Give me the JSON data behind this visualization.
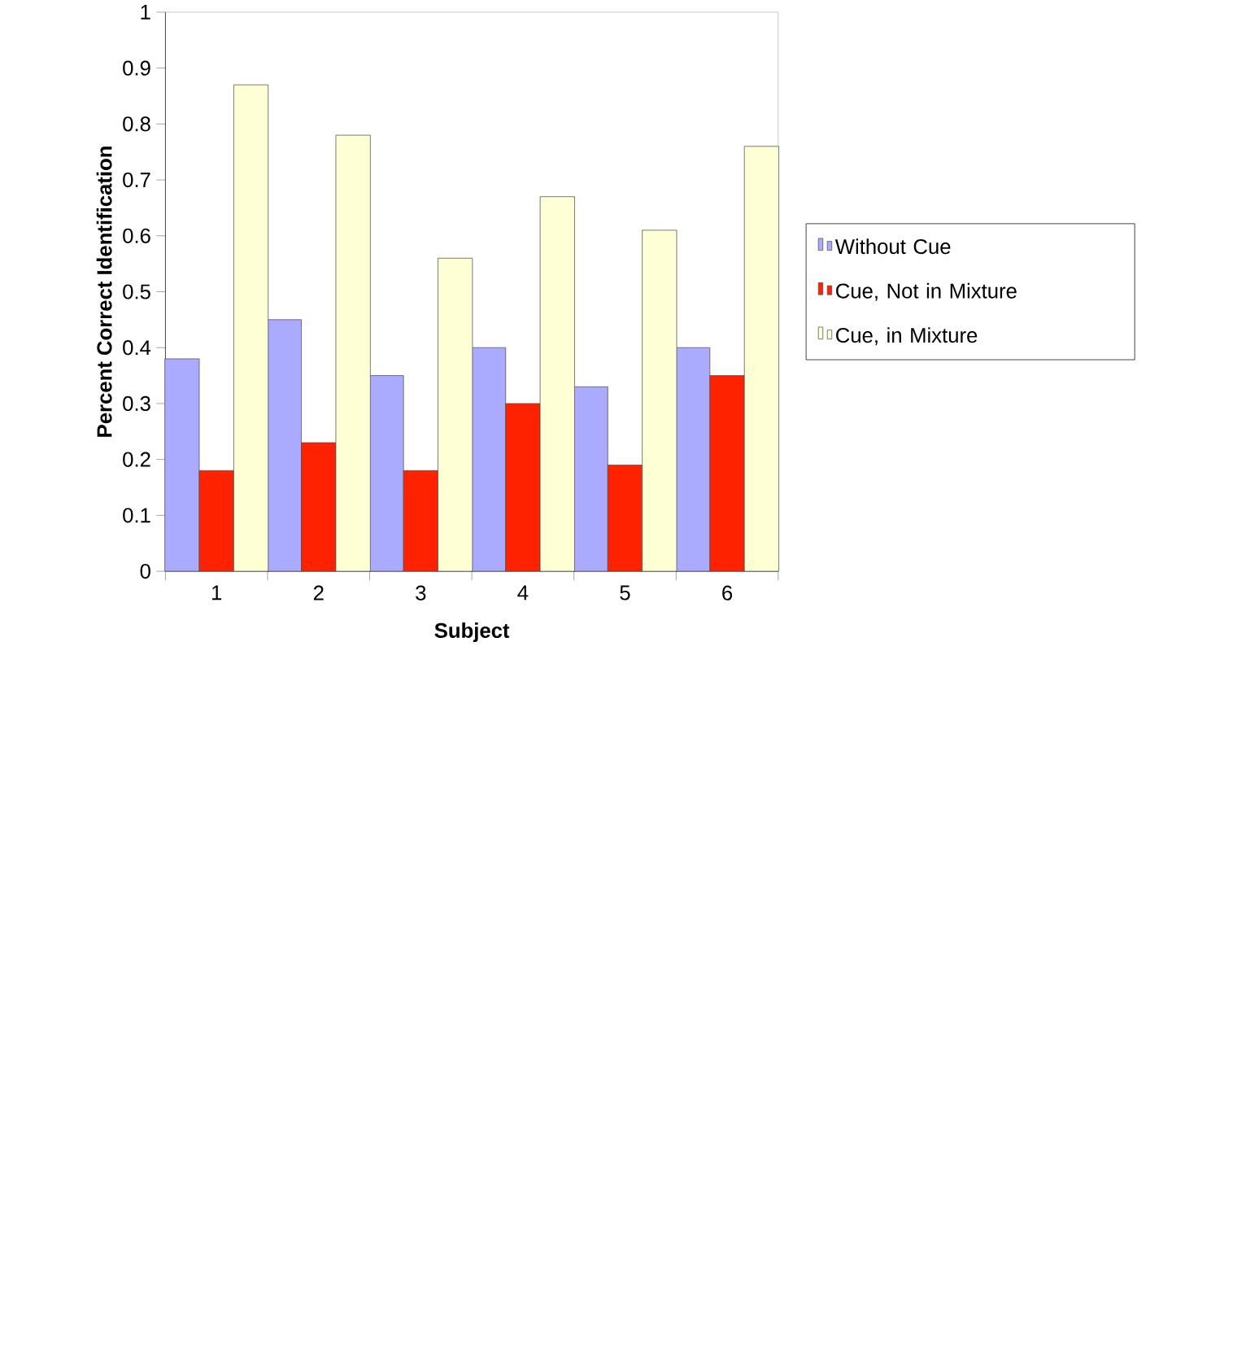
{
  "chart_data": {
    "type": "bar",
    "xlabel": "Subject",
    "ylabel": "Percent Correct Identification",
    "categories": [
      "1",
      "2",
      "3",
      "4",
      "5",
      "6"
    ],
    "series": [
      {
        "name": "Without Cue",
        "color": "#aaaaff",
        "values": [
          0.38,
          0.45,
          0.35,
          0.4,
          0.33,
          0.4
        ]
      },
      {
        "name": "Cue, Not in Mixture",
        "color": "#ff2200",
        "values": [
          0.18,
          0.23,
          0.18,
          0.3,
          0.19,
          0.35
        ]
      },
      {
        "name": "Cue, in Mixture",
        "color": "#ffffd5",
        "values": [
          0.87,
          0.78,
          0.56,
          0.67,
          0.61,
          0.76
        ]
      }
    ],
    "ylim": [
      0,
      1
    ],
    "yticks": [
      0,
      0.1,
      0.2,
      0.3,
      0.4,
      0.5,
      0.6,
      0.7,
      0.8,
      0.9,
      1
    ],
    "legend": "right"
  }
}
